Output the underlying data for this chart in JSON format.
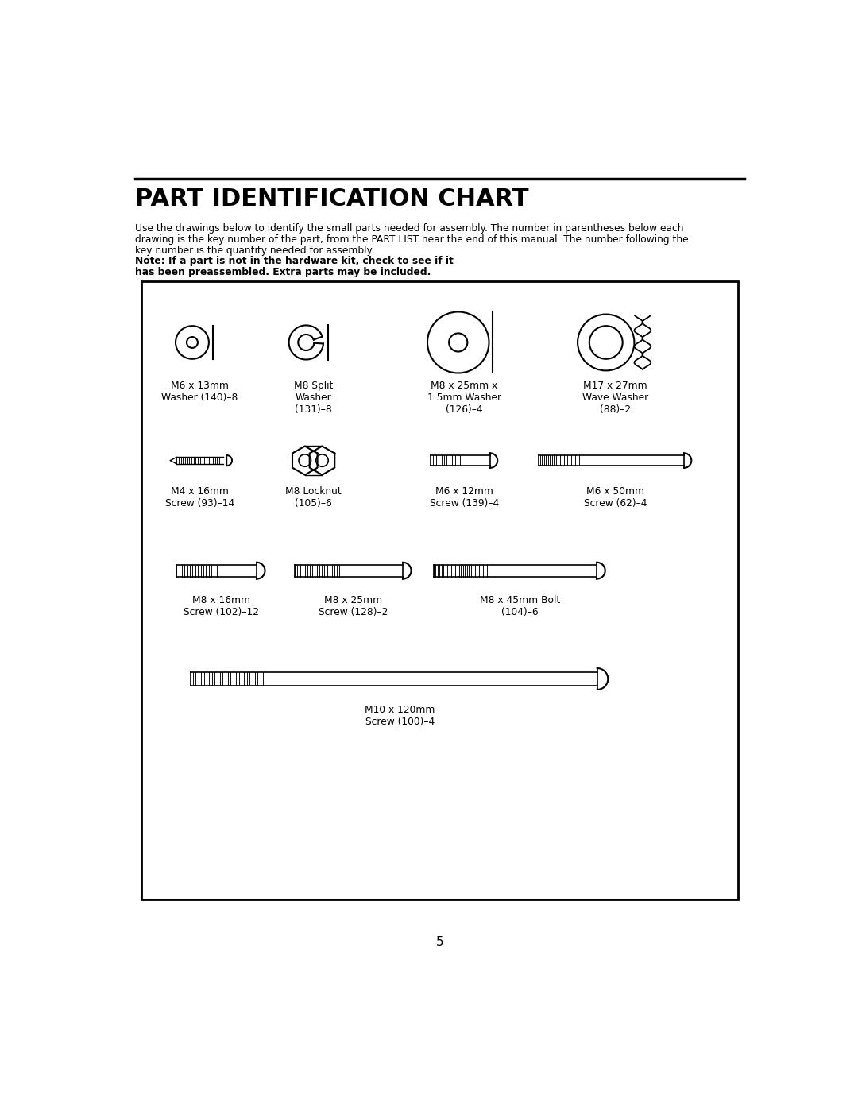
{
  "title": "PART IDENTIFICATION CHART",
  "desc_line1": "Use the drawings below to identify the small parts needed for assembly. The number in parentheses below each",
  "desc_line2": "drawing is the key number of the part, from the PART LIST near the end of this manual. The number following the",
  "desc_line3": "key number is the quantity needed for assembly. ",
  "desc_bold": "Note: If a part is not in the hardware kit, check to see if it",
  "desc_bold2": "has been preassembled. Extra parts may be included.",
  "page_number": "5",
  "bg_color": "#ffffff",
  "line_color": "#000000",
  "text_color": "#000000"
}
